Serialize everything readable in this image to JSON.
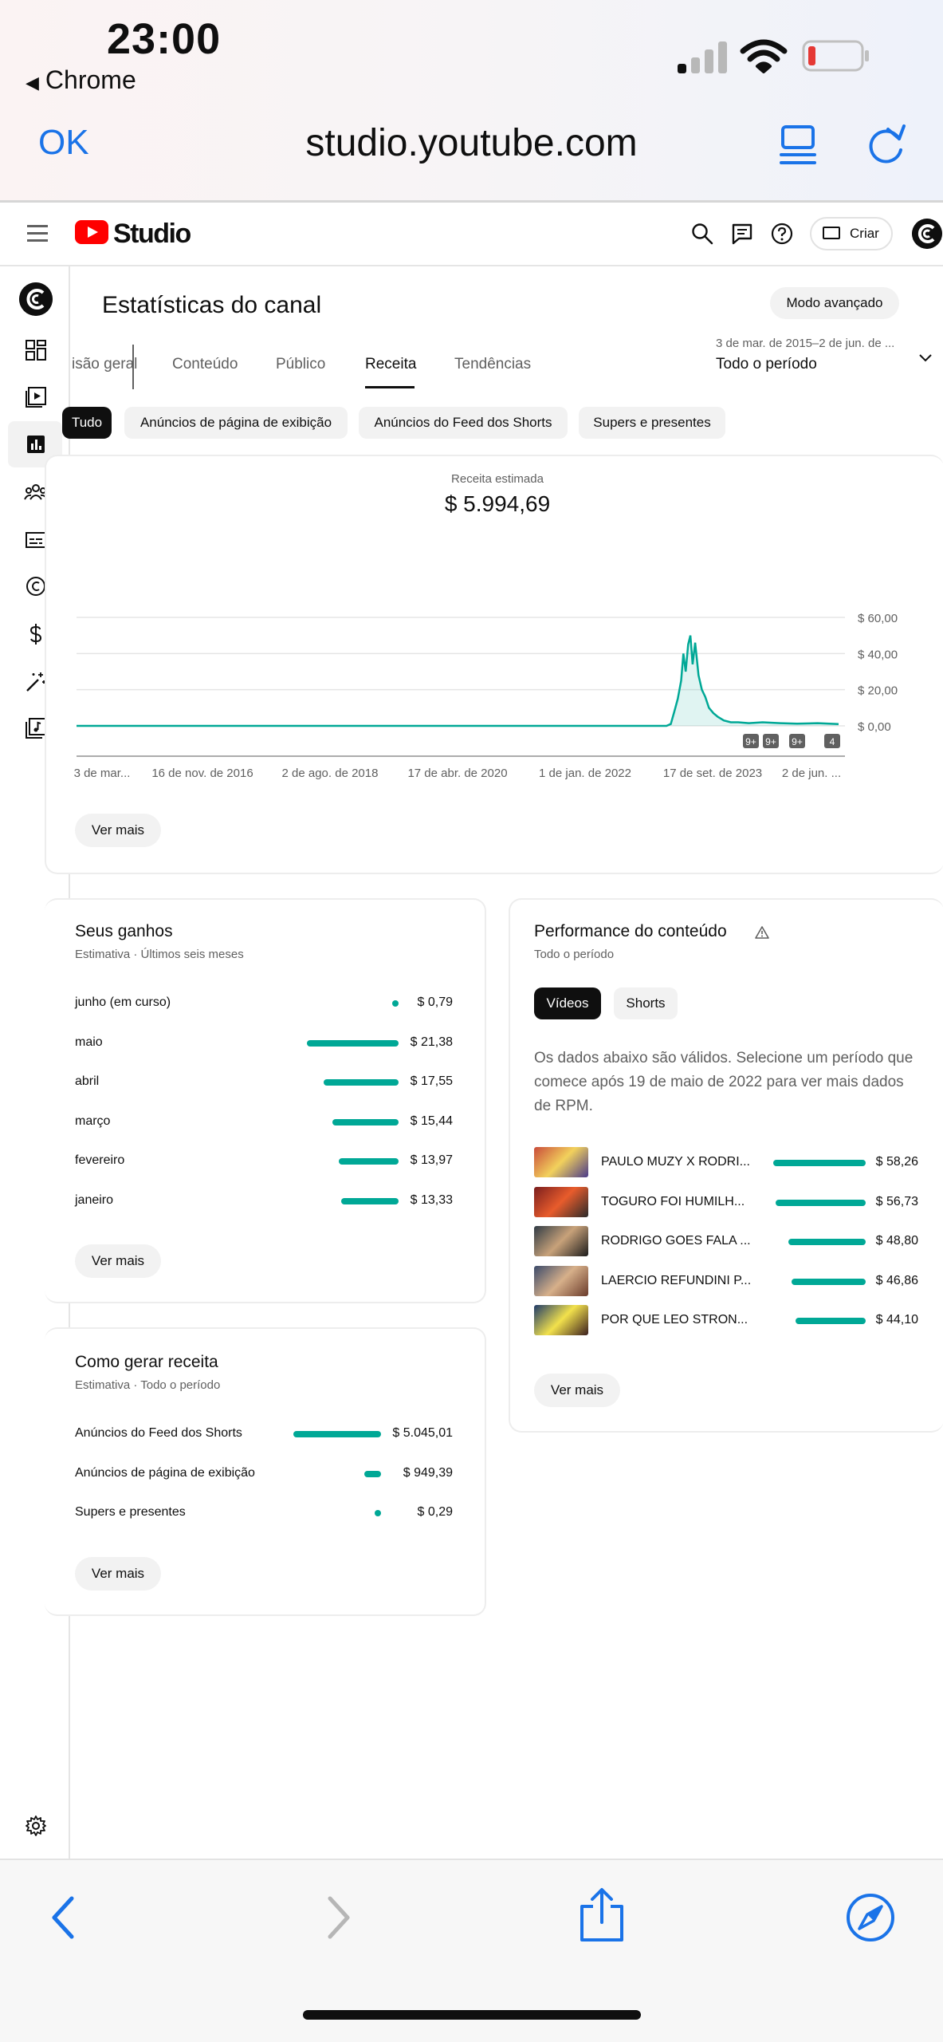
{
  "status_bar": {
    "time": "23:00",
    "back_app": "Chrome",
    "back_glyph": "◀"
  },
  "browser": {
    "done_label": "OK",
    "url": "studio.youtube.com"
  },
  "header": {
    "brand": "Studio",
    "create_label": "Criar"
  },
  "page": {
    "title": "Estatísticas do canal",
    "advanced_mode": "Modo avançado",
    "tabs": [
      {
        "label": "isão geral"
      },
      {
        "label": "Conteúdo"
      },
      {
        "label": "Público"
      },
      {
        "label": "Receita"
      },
      {
        "label": "Tendências"
      }
    ],
    "date_range": "3 de mar. de 2015–2 de jun. de ...",
    "period": "Todo o período",
    "chips": [
      {
        "label": "Tudo"
      },
      {
        "label": "Anúncios de página de exibição"
      },
      {
        "label": "Anúncios do Feed dos Shorts"
      },
      {
        "label": "Supers e presentes"
      }
    ]
  },
  "revenue": {
    "label": "Receita estimada",
    "value": "$ 5.994,69",
    "see_more": "Ver mais"
  },
  "chart_data": {
    "type": "area",
    "title": "Receita estimada",
    "x_ticks": [
      "3 de mar...",
      "16 de nov. de 2016",
      "2 de ago. de 2018",
      "17 de abr. de 2020",
      "1 de jan. de 2022",
      "17 de set. de 2023",
      "2 de jun. ..."
    ],
    "y_ticks": [
      "$ 60,00",
      "$ 40,00",
      "$ 20,00",
      "$ 0,00"
    ],
    "ylim": [
      0,
      60
    ],
    "series": [
      {
        "x": [
          "2015-03-03",
          "2016-11-16",
          "2018-08-02",
          "2020-04-17",
          "2021-12-01",
          "2022-05-01",
          "2022-05-20",
          "2022-06-05",
          "2022-06-20",
          "2022-07-05",
          "2022-07-15",
          "2022-07-25",
          "2022-08-05",
          "2022-08-15",
          "2022-08-25",
          "2022-09-05",
          "2022-09-20",
          "2022-10-05",
          "2022-10-20",
          "2022-11-05",
          "2022-11-25",
          "2022-12-15",
          "2023-01-10",
          "2023-02-10",
          "2023-03-15",
          "2023-05-01",
          "2023-07-01",
          "2023-09-17",
          "2023-12-01",
          "2024-03-01",
          "2024-06-02"
        ],
        "values": [
          0,
          0,
          0,
          0,
          0,
          0,
          1,
          8,
          15,
          25,
          40,
          30,
          45,
          50,
          34,
          46,
          28,
          20,
          16,
          10,
          7,
          5,
          3,
          2,
          2,
          1.5,
          2,
          1.5,
          1.2,
          1.5,
          1
        ]
      }
    ],
    "markers": [
      "9+",
      "9+",
      "9+",
      "4"
    ],
    "grid": true
  },
  "ganhos": {
    "title": "Seus ganhos",
    "subtitle": "Estimativa · Últimos seis meses",
    "rows": [
      {
        "label": "junho (em curso)",
        "value": "$ 0,79",
        "amount": 0.79
      },
      {
        "label": "maio",
        "value": "$ 21,38",
        "amount": 21.38
      },
      {
        "label": "abril",
        "value": "$ 17,55",
        "amount": 17.55
      },
      {
        "label": "março",
        "value": "$ 15,44",
        "amount": 15.44
      },
      {
        "label": "fevereiro",
        "value": "$ 13,97",
        "amount": 13.97
      },
      {
        "label": "janeiro",
        "value": "$ 13,33",
        "amount": 13.33
      }
    ],
    "see_more": "Ver mais"
  },
  "gerar": {
    "title": "Como gerar receita",
    "subtitle": "Estimativa · Todo o período",
    "rows": [
      {
        "label": "Anúncios do Feed dos Shorts",
        "value": "$ 5.045,01",
        "amount": 5045.01
      },
      {
        "label": "Anúncios de página de exibição",
        "value": "$ 949,39",
        "amount": 949.39
      },
      {
        "label": "Supers e presentes",
        "value": "$ 0,29",
        "amount": 0.29
      }
    ],
    "see_more": "Ver mais"
  },
  "performance": {
    "title": "Performance do conteúdo",
    "subtitle": "Todo o período",
    "tabs": [
      {
        "label": "Vídeos"
      },
      {
        "label": "Shorts"
      }
    ],
    "note": "Os dados abaixo são válidos. Selecione um período que comece após 19 de maio de 2022 para ver mais dados de RPM.",
    "rows": [
      {
        "label": "PAULO MUZY X RODRI...",
        "value": "$ 58,26",
        "amount": 58.26
      },
      {
        "label": "TOGURO FOI HUMILH...",
        "value": "$ 56,73",
        "amount": 56.73
      },
      {
        "label": "RODRIGO GOES FALA ...",
        "value": "$ 48,80",
        "amount": 48.8
      },
      {
        "label": "LAERCIO REFUNDINI P...",
        "value": "$ 46,86",
        "amount": 46.86
      },
      {
        "label": "POR QUE LEO STRON...",
        "value": "$ 44,10",
        "amount": 44.1
      }
    ],
    "see_more": "Ver mais"
  },
  "colors": {
    "accent": "#00a896",
    "link_blue": "#1a73e8",
    "brand_red": "#ff0000"
  },
  "icons": [
    "search-icon",
    "feedback-icon",
    "help-icon",
    "dashboard-icon",
    "content-icon",
    "analytics-icon",
    "community-icon",
    "subtitles-icon",
    "copyright-icon",
    "earn-icon",
    "customization-icon",
    "audio-library-icon",
    "settings-icon",
    "back-icon",
    "forward-icon",
    "share-icon",
    "compass-icon"
  ]
}
